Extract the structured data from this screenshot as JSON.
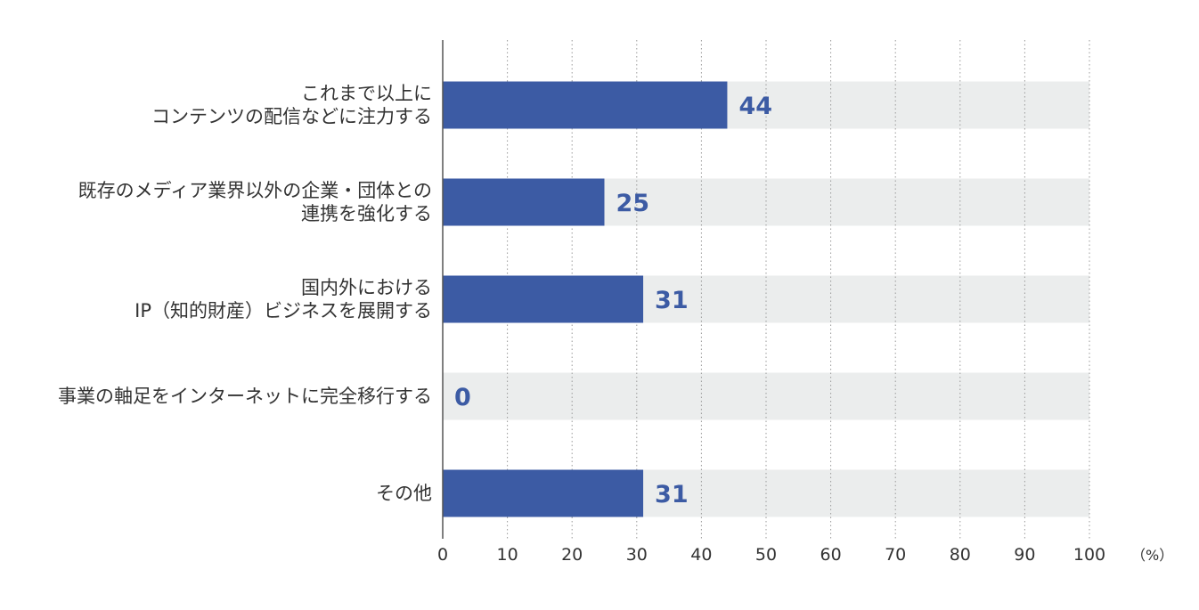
{
  "chart_data": {
    "type": "bar",
    "orientation": "horizontal",
    "categories": [
      [
        "これまで以上に",
        "コンテンツの配信などに注力する"
      ],
      [
        "既存のメディア業界以外の企業・団体との",
        "連携を強化する"
      ],
      [
        "国内外における",
        "IP（知的財産）ビジネスを展開する"
      ],
      [
        "事業の軸足をインターネットに完全移行する"
      ],
      [
        "その他"
      ]
    ],
    "values": [
      44,
      25,
      31,
      0,
      31
    ],
    "value_labels": [
      "44",
      "25",
      "31",
      "0",
      "31"
    ],
    "xlim": [
      0,
      100
    ],
    "x_ticks": [
      "0",
      "10",
      "20",
      "30",
      "40",
      "50",
      "60",
      "70",
      "80",
      "90",
      "100"
    ],
    "unit": "（%）",
    "grid": true,
    "grid_style": "dotted vertical",
    "colors": {
      "bar": "#3c5ba4",
      "track": "#ebeded",
      "value_text": "#3c5ba4",
      "grid": "#9a9a9a",
      "axis": "#555555"
    }
  }
}
